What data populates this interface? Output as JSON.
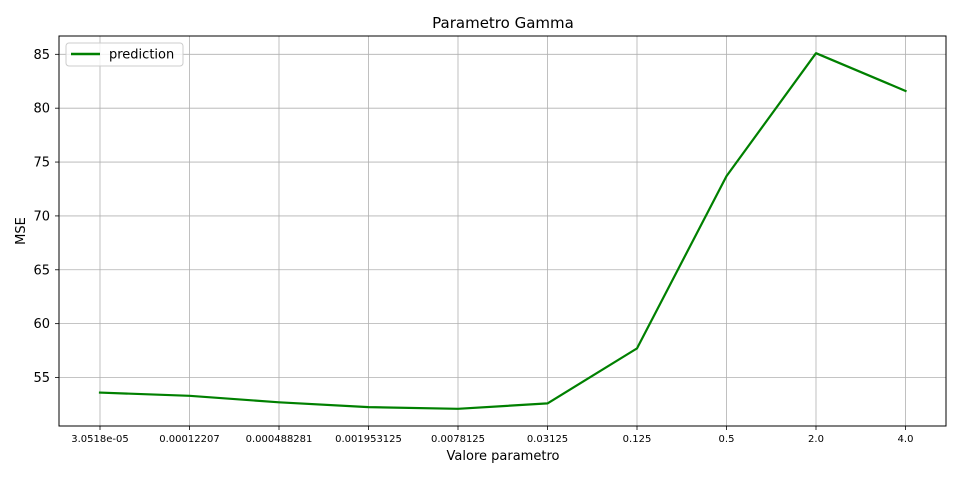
{
  "chart_data": {
    "type": "line",
    "title": "Parametro Gamma",
    "xlabel": "Valore parametro",
    "ylabel": "MSE",
    "categories": [
      "3.0518e-05",
      "0.00012207",
      "0.000488281",
      "0.001953125",
      "0.0078125",
      "0.03125",
      "0.125",
      "0.5",
      "2.0",
      "4.0"
    ],
    "series": [
      {
        "name": "prediction",
        "color": "#008000",
        "values": [
          53.6,
          53.3,
          52.7,
          52.25,
          52.1,
          52.6,
          57.7,
          73.7,
          85.1,
          81.6
        ]
      }
    ],
    "yticks": [
      55,
      60,
      65,
      70,
      75,
      80,
      85
    ],
    "ylim": [
      50.5,
      86.7
    ],
    "grid": true,
    "legend_position": "upper-left"
  }
}
